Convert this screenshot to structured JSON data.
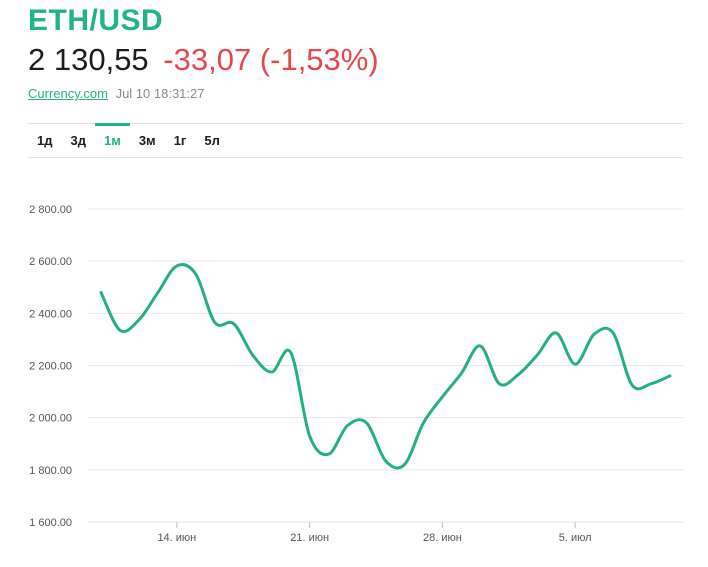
{
  "header": {
    "pair": "ETH/USD",
    "price": "2 130,55",
    "change": "-33,07 (-1,53%)",
    "source": "Currency.com",
    "timestamp": "Jul 10 18:31:27"
  },
  "tabs": [
    {
      "label": "1д",
      "active": false
    },
    {
      "label": "3д",
      "active": false
    },
    {
      "label": "1м",
      "active": true
    },
    {
      "label": "3м",
      "active": false
    },
    {
      "label": "1г",
      "active": false
    },
    {
      "label": "5л",
      "active": false
    }
  ],
  "colors": {
    "accent": "#20b486",
    "negative": "#e8474b",
    "line": "#26b07f",
    "grid": "#e6e6e6"
  },
  "chart_data": {
    "type": "line",
    "title": "",
    "xlabel": "",
    "ylabel": "",
    "ylim": [
      1600,
      2800
    ],
    "yticks": [
      1600,
      1800,
      2000,
      2200,
      2400,
      2600,
      2800
    ],
    "ytick_labels": [
      "1 600.00",
      "1 800.00",
      "2 000.00",
      "2 200.00",
      "2 400.00",
      "2 600.00",
      "2 800.00"
    ],
    "xlim": [
      "2021-06-10",
      "2021-07-10"
    ],
    "xtick_labels": [
      {
        "x": "2021-06-14",
        "label": "14. июн"
      },
      {
        "x": "2021-06-21",
        "label": "21. июн"
      },
      {
        "x": "2021-06-28",
        "label": "28. июн"
      },
      {
        "x": "2021-07-05",
        "label": "5. июл"
      }
    ],
    "grid": true,
    "series": [
      {
        "x": [
          "2021-06-10",
          "2021-06-11",
          "2021-06-12",
          "2021-06-13",
          "2021-06-14",
          "2021-06-15",
          "2021-06-16",
          "2021-06-17",
          "2021-06-18",
          "2021-06-19",
          "2021-06-20",
          "2021-06-21",
          "2021-06-22",
          "2021-06-23",
          "2021-06-24",
          "2021-06-25",
          "2021-06-26",
          "2021-06-27",
          "2021-06-28",
          "2021-06-29",
          "2021-06-30",
          "2021-07-01",
          "2021-07-02",
          "2021-07-03",
          "2021-07-04",
          "2021-07-05",
          "2021-07-06",
          "2021-07-07",
          "2021-07-08",
          "2021-07-09",
          "2021-07-10"
        ],
        "values": [
          2480,
          2335,
          2375,
          2480,
          2582,
          2550,
          2365,
          2360,
          2240,
          2175,
          2250,
          1930,
          1860,
          1970,
          1980,
          1835,
          1820,
          1980,
          2080,
          2170,
          2275,
          2130,
          2165,
          2240,
          2325,
          2205,
          2320,
          2325,
          2125,
          2130,
          2160
        ]
      }
    ]
  }
}
